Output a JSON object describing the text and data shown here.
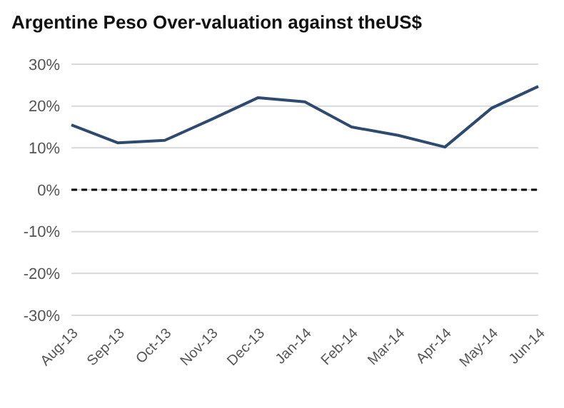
{
  "chart_data": {
    "type": "line",
    "title": "Argentine Peso Over-valuation against theUS$",
    "categories": [
      "Aug-13",
      "Sep-13",
      "Oct-13",
      "Nov-13",
      "Dec-13",
      "Jan-14",
      "Feb-14",
      "Mar-14",
      "Apr-14",
      "May-14",
      "Jun-14"
    ],
    "series": [
      {
        "color": "#2e4a6e",
        "values": [
          15.5,
          11.2,
          11.8,
          16.8,
          22,
          21,
          15,
          13,
          10.2,
          19.5,
          24.7
        ]
      }
    ],
    "ylim": [
      -30,
      30
    ],
    "yticks": [
      {
        "value": -30,
        "label": "-30%"
      },
      {
        "value": -20,
        "label": "-20%"
      },
      {
        "value": -10,
        "label": "-10%"
      },
      {
        "value": 0,
        "label": "0%"
      },
      {
        "value": 10,
        "label": "10%"
      },
      {
        "value": 20,
        "label": "20%"
      },
      {
        "value": 30,
        "label": "30%"
      }
    ],
    "ref_lines": [
      {
        "axis": "y",
        "value": 0,
        "color": "#000000",
        "line_style": "dashed"
      }
    ],
    "grid": "y",
    "legend": false,
    "marker": "none",
    "line_style": "solid"
  }
}
